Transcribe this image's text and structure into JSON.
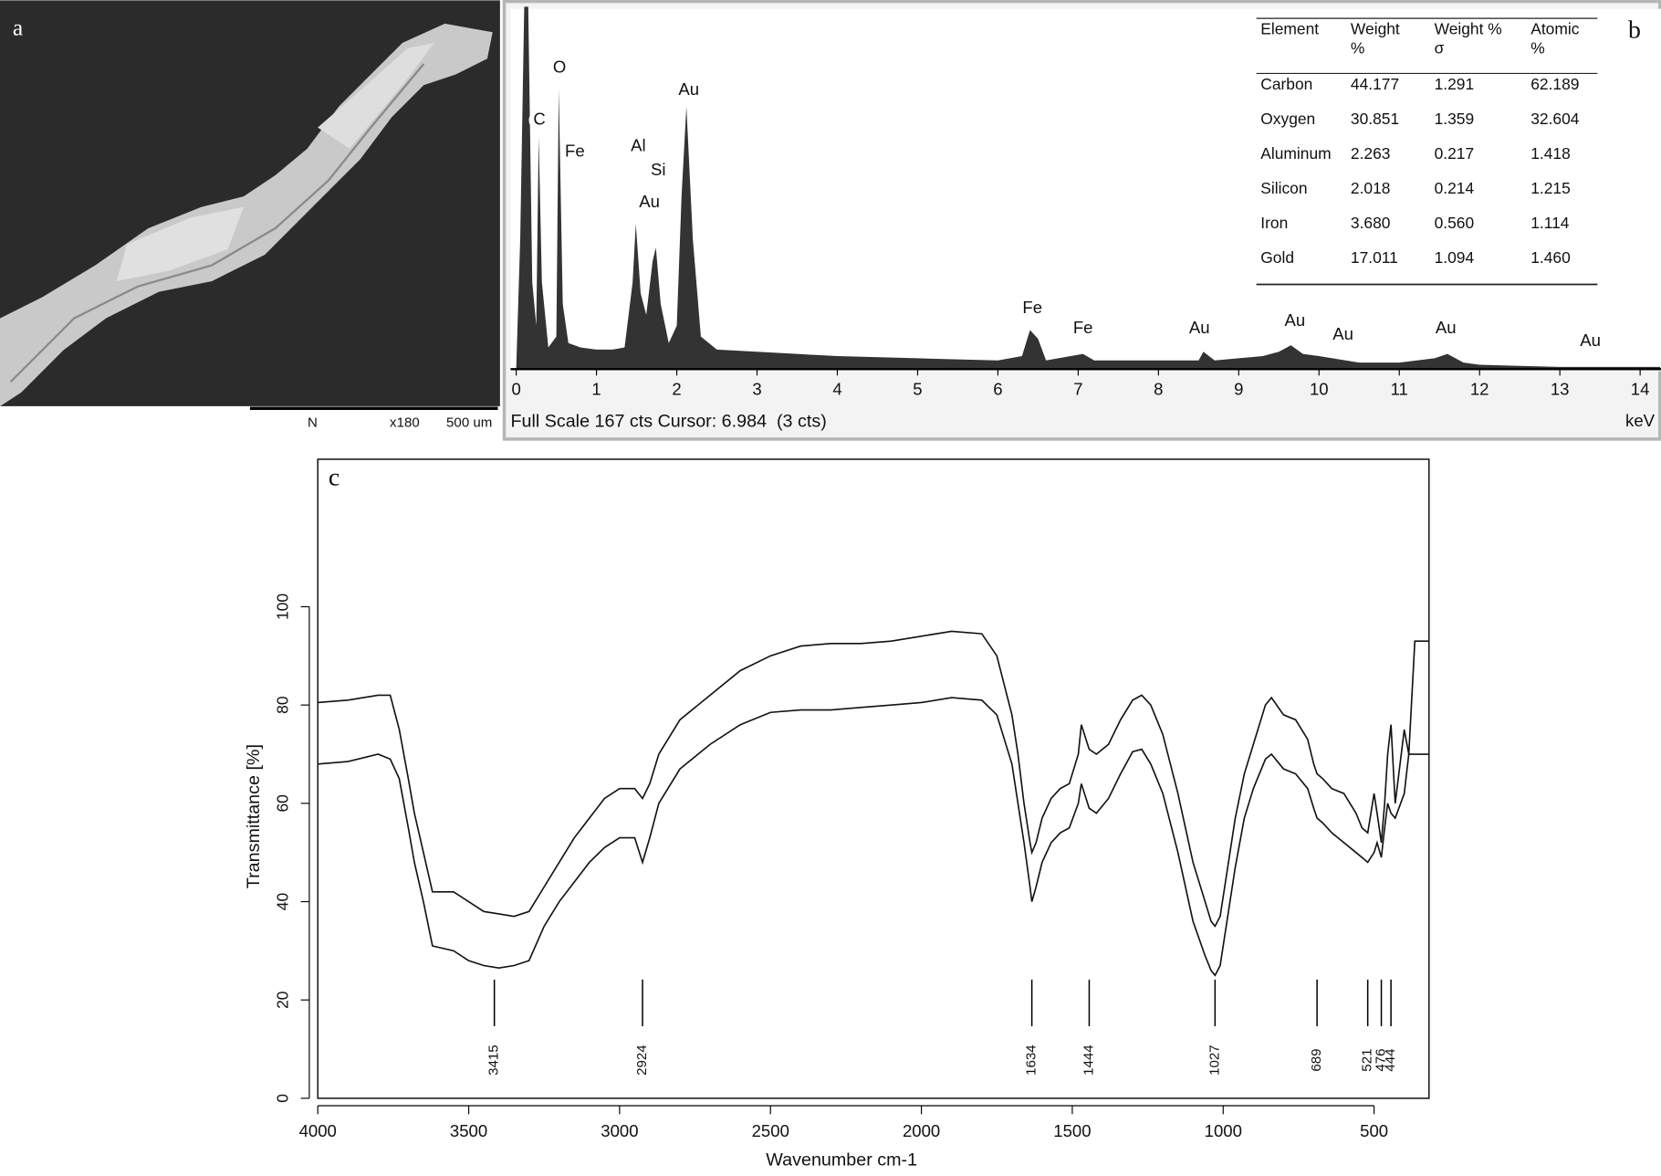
{
  "sem": {
    "label": "a",
    "scale_bar": [
      "N",
      "x180",
      "500 um"
    ]
  },
  "eds_table": {
    "header": [
      [
        "Element"
      ],
      [
        "Weight",
        "%"
      ],
      [
        "Weight %",
        "σ"
      ],
      [
        "Atomic",
        "%"
      ]
    ],
    "rows": [
      [
        "Carbon",
        "44.177",
        "1.291",
        "62.189"
      ],
      [
        "Oxygen",
        "30.851",
        "1.359",
        "32.604"
      ],
      [
        "Aluminum",
        "2.263",
        "0.217",
        "1.418"
      ],
      [
        "Silicon",
        "2.018",
        "0.214",
        "1.215"
      ],
      [
        "Iron",
        "3.680",
        "0.560",
        "1.114"
      ],
      [
        "Gold",
        "17.011",
        "1.094",
        "1.460"
      ]
    ]
  },
  "chart_data": [
    {
      "type": "area",
      "panel_label": "b",
      "color": "#333333",
      "x": [
        0.0,
        0.05,
        0.1,
        0.15,
        0.2,
        0.25,
        0.28,
        0.32,
        0.4,
        0.5,
        0.53,
        0.58,
        0.65,
        0.8,
        1.0,
        1.2,
        1.35,
        1.45,
        1.49,
        1.55,
        1.62,
        1.7,
        1.74,
        1.8,
        1.9,
        2.0,
        2.06,
        2.12,
        2.2,
        2.3,
        2.5,
        3,
        3.5,
        4,
        5,
        6,
        6.3,
        6.4,
        6.5,
        6.6,
        7.06,
        7.2,
        8,
        8.5,
        8.56,
        8.7,
        9.3,
        9.5,
        9.65,
        9.8,
        10,
        10.5,
        11,
        11.44,
        11.6,
        11.8,
        12,
        13,
        14,
        14.25
      ],
      "values": [
        0,
        60,
        167,
        167,
        40,
        20,
        107,
        40,
        10,
        15,
        129,
        30,
        12,
        10,
        9,
        9,
        10,
        40,
        67,
        35,
        25,
        50,
        56,
        30,
        12,
        20,
        80,
        121,
        60,
        15,
        9,
        8,
        7,
        6,
        5,
        4,
        6,
        18,
        14,
        4,
        7,
        4,
        4,
        4,
        8,
        4,
        6,
        8,
        11,
        7,
        6,
        3,
        3,
        5,
        7,
        3,
        2,
        1,
        1,
        1
      ],
      "xlim": [
        -0.07,
        14.26
      ],
      "ylim": [
        0,
        167
      ],
      "xticks": [
        0,
        1,
        2,
        3,
        4,
        5,
        6,
        7,
        8,
        9,
        10,
        11,
        12,
        13,
        14
      ],
      "xlabel": "keV",
      "footer": "Full Scale 167 cts Cursor: 6.984  (3 cts)",
      "annotations": [
        {
          "text": "C",
          "x": 0.29
        },
        {
          "text": "O",
          "x": 0.54
        },
        {
          "text": "Fe",
          "x": 0.73
        },
        {
          "text": "Al",
          "x": 1.52
        },
        {
          "text": "Si",
          "x": 1.77
        },
        {
          "text": "Au",
          "x": 1.66
        },
        {
          "text": "Au",
          "x": 2.15
        },
        {
          "text": "Fe",
          "x": 6.43
        },
        {
          "text": "Fe",
          "x": 7.06
        },
        {
          "text": "Au",
          "x": 8.51
        },
        {
          "text": "Au",
          "x": 9.7
        },
        {
          "text": "Au",
          "x": 10.3
        },
        {
          "text": "Au",
          "x": 11.58
        },
        {
          "text": "Au",
          "x": 13.38
        }
      ]
    },
    {
      "type": "line",
      "panel_label": "c",
      "xlabel": "Wavenumber cm-1",
      "ylabel": "Transmittance [%]",
      "xlim": [
        4000,
        318
      ],
      "ylim": [
        0,
        130
      ],
      "xticks": [
        4000,
        3500,
        3000,
        2500,
        2000,
        1500,
        1000,
        500
      ],
      "yticks": [
        0,
        20,
        40,
        60,
        80,
        100
      ],
      "peaks": [
        3415,
        2924,
        1634,
        1444,
        1027,
        689,
        521,
        476,
        444
      ],
      "x": [
        4000,
        3900,
        3800,
        3760,
        3730,
        3700,
        3680,
        3650,
        3620,
        3550,
        3500,
        3450,
        3400,
        3350,
        3300,
        3250,
        3200,
        3150,
        3100,
        3050,
        3000,
        2950,
        2924,
        2900,
        2870,
        2800,
        2700,
        2600,
        2500,
        2400,
        2300,
        2200,
        2100,
        2000,
        1900,
        1800,
        1750,
        1700,
        1680,
        1660,
        1640,
        1634,
        1620,
        1600,
        1570,
        1540,
        1510,
        1480,
        1470,
        1444,
        1420,
        1380,
        1340,
        1300,
        1270,
        1240,
        1200,
        1150,
        1100,
        1060,
        1040,
        1027,
        1010,
        990,
        960,
        930,
        900,
        860,
        840,
        800,
        760,
        720,
        700,
        689,
        670,
        640,
        600,
        560,
        540,
        521,
        500,
        490,
        476,
        465,
        455,
        444,
        430,
        400,
        385,
        365,
        320
      ],
      "series": [
        {
          "color": "#111111",
          "values": [
            80.5,
            81,
            82,
            82,
            75,
            65,
            58,
            50,
            42,
            42,
            40,
            38,
            37.5,
            37,
            38,
            43,
            48,
            53,
            57,
            61,
            63,
            63,
            61,
            64,
            70,
            77,
            82,
            87,
            90,
            92,
            92.5,
            92.5,
            93,
            94,
            95,
            94.5,
            90,
            78,
            70,
            60,
            52,
            50,
            52,
            57,
            61,
            63,
            64,
            70,
            76,
            71,
            70,
            72,
            77,
            81,
            82,
            80,
            74,
            62,
            48,
            40,
            36,
            35,
            37,
            45,
            57,
            66,
            72,
            80,
            81.5,
            78,
            77,
            73,
            68,
            66,
            65,
            63,
            62,
            58,
            55,
            54,
            62,
            58,
            52,
            60,
            70,
            76,
            60,
            75,
            70,
            93,
            93
          ]
        },
        {
          "color": "#111111",
          "values": [
            68,
            68.5,
            70,
            69,
            65,
            55,
            48,
            40,
            31,
            30,
            28,
            27,
            26.5,
            27,
            28,
            35,
            40,
            44,
            48,
            51,
            53,
            53,
            48,
            53,
            60,
            67,
            72,
            76,
            78.5,
            79,
            79,
            79.5,
            80,
            80.5,
            81.5,
            81,
            78,
            68,
            60,
            52,
            43,
            40,
            43,
            48,
            52,
            54,
            55,
            60,
            64,
            59,
            58,
            61,
            66,
            70.5,
            71,
            68,
            62,
            50,
            36,
            29,
            26,
            25,
            27,
            35,
            47,
            57,
            63,
            69,
            70,
            67,
            66,
            63,
            59,
            57,
            56,
            54,
            52,
            50,
            49,
            48,
            50,
            52,
            49,
            55,
            60,
            58,
            57,
            62,
            70,
            70,
            70
          ]
        }
      ]
    }
  ]
}
